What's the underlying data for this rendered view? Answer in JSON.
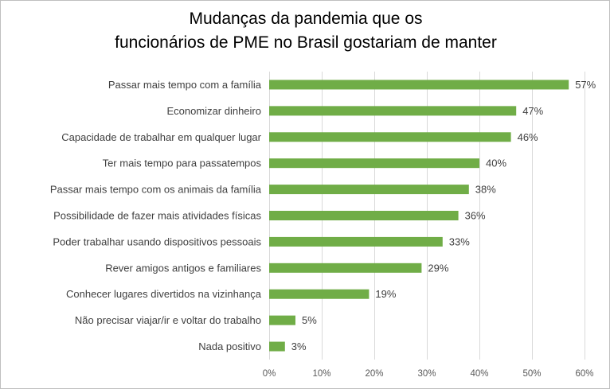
{
  "chart_data": {
    "type": "bar",
    "orientation": "horizontal",
    "title_lines": [
      "Mudanças da pandemia que os",
      "funcionários de PME no Brasil gostariam de manter"
    ],
    "categories": [
      "Passar mais tempo com a família",
      "Economizar dinheiro",
      "Capacidade de trabalhar em qualquer lugar",
      "Ter mais tempo para passatempos",
      "Passar mais tempo com os animais da família",
      "Possibilidade de fazer mais atividades físicas",
      "Poder trabalhar usando dispositivos pessoais",
      "Rever amigos antigos e familiares",
      "Conhecer lugares divertidos na vizinhança",
      "Não precisar viajar/ir e voltar do trabalho",
      "Nada positivo"
    ],
    "values": [
      57,
      47,
      46,
      40,
      38,
      36,
      33,
      29,
      19,
      5,
      3
    ],
    "value_labels": [
      "57%",
      "47%",
      "46%",
      "40%",
      "38%",
      "36%",
      "33%",
      "29%",
      "19%",
      "5%",
      "3%"
    ],
    "xlim": [
      0,
      60
    ],
    "x_ticks": [
      0,
      10,
      20,
      30,
      40,
      50,
      60
    ],
    "x_tick_labels": [
      "0%",
      "10%",
      "20%",
      "30%",
      "40%",
      "50%",
      "60%"
    ],
    "grid": true,
    "legend": false,
    "bar_color": "#70AD47"
  }
}
